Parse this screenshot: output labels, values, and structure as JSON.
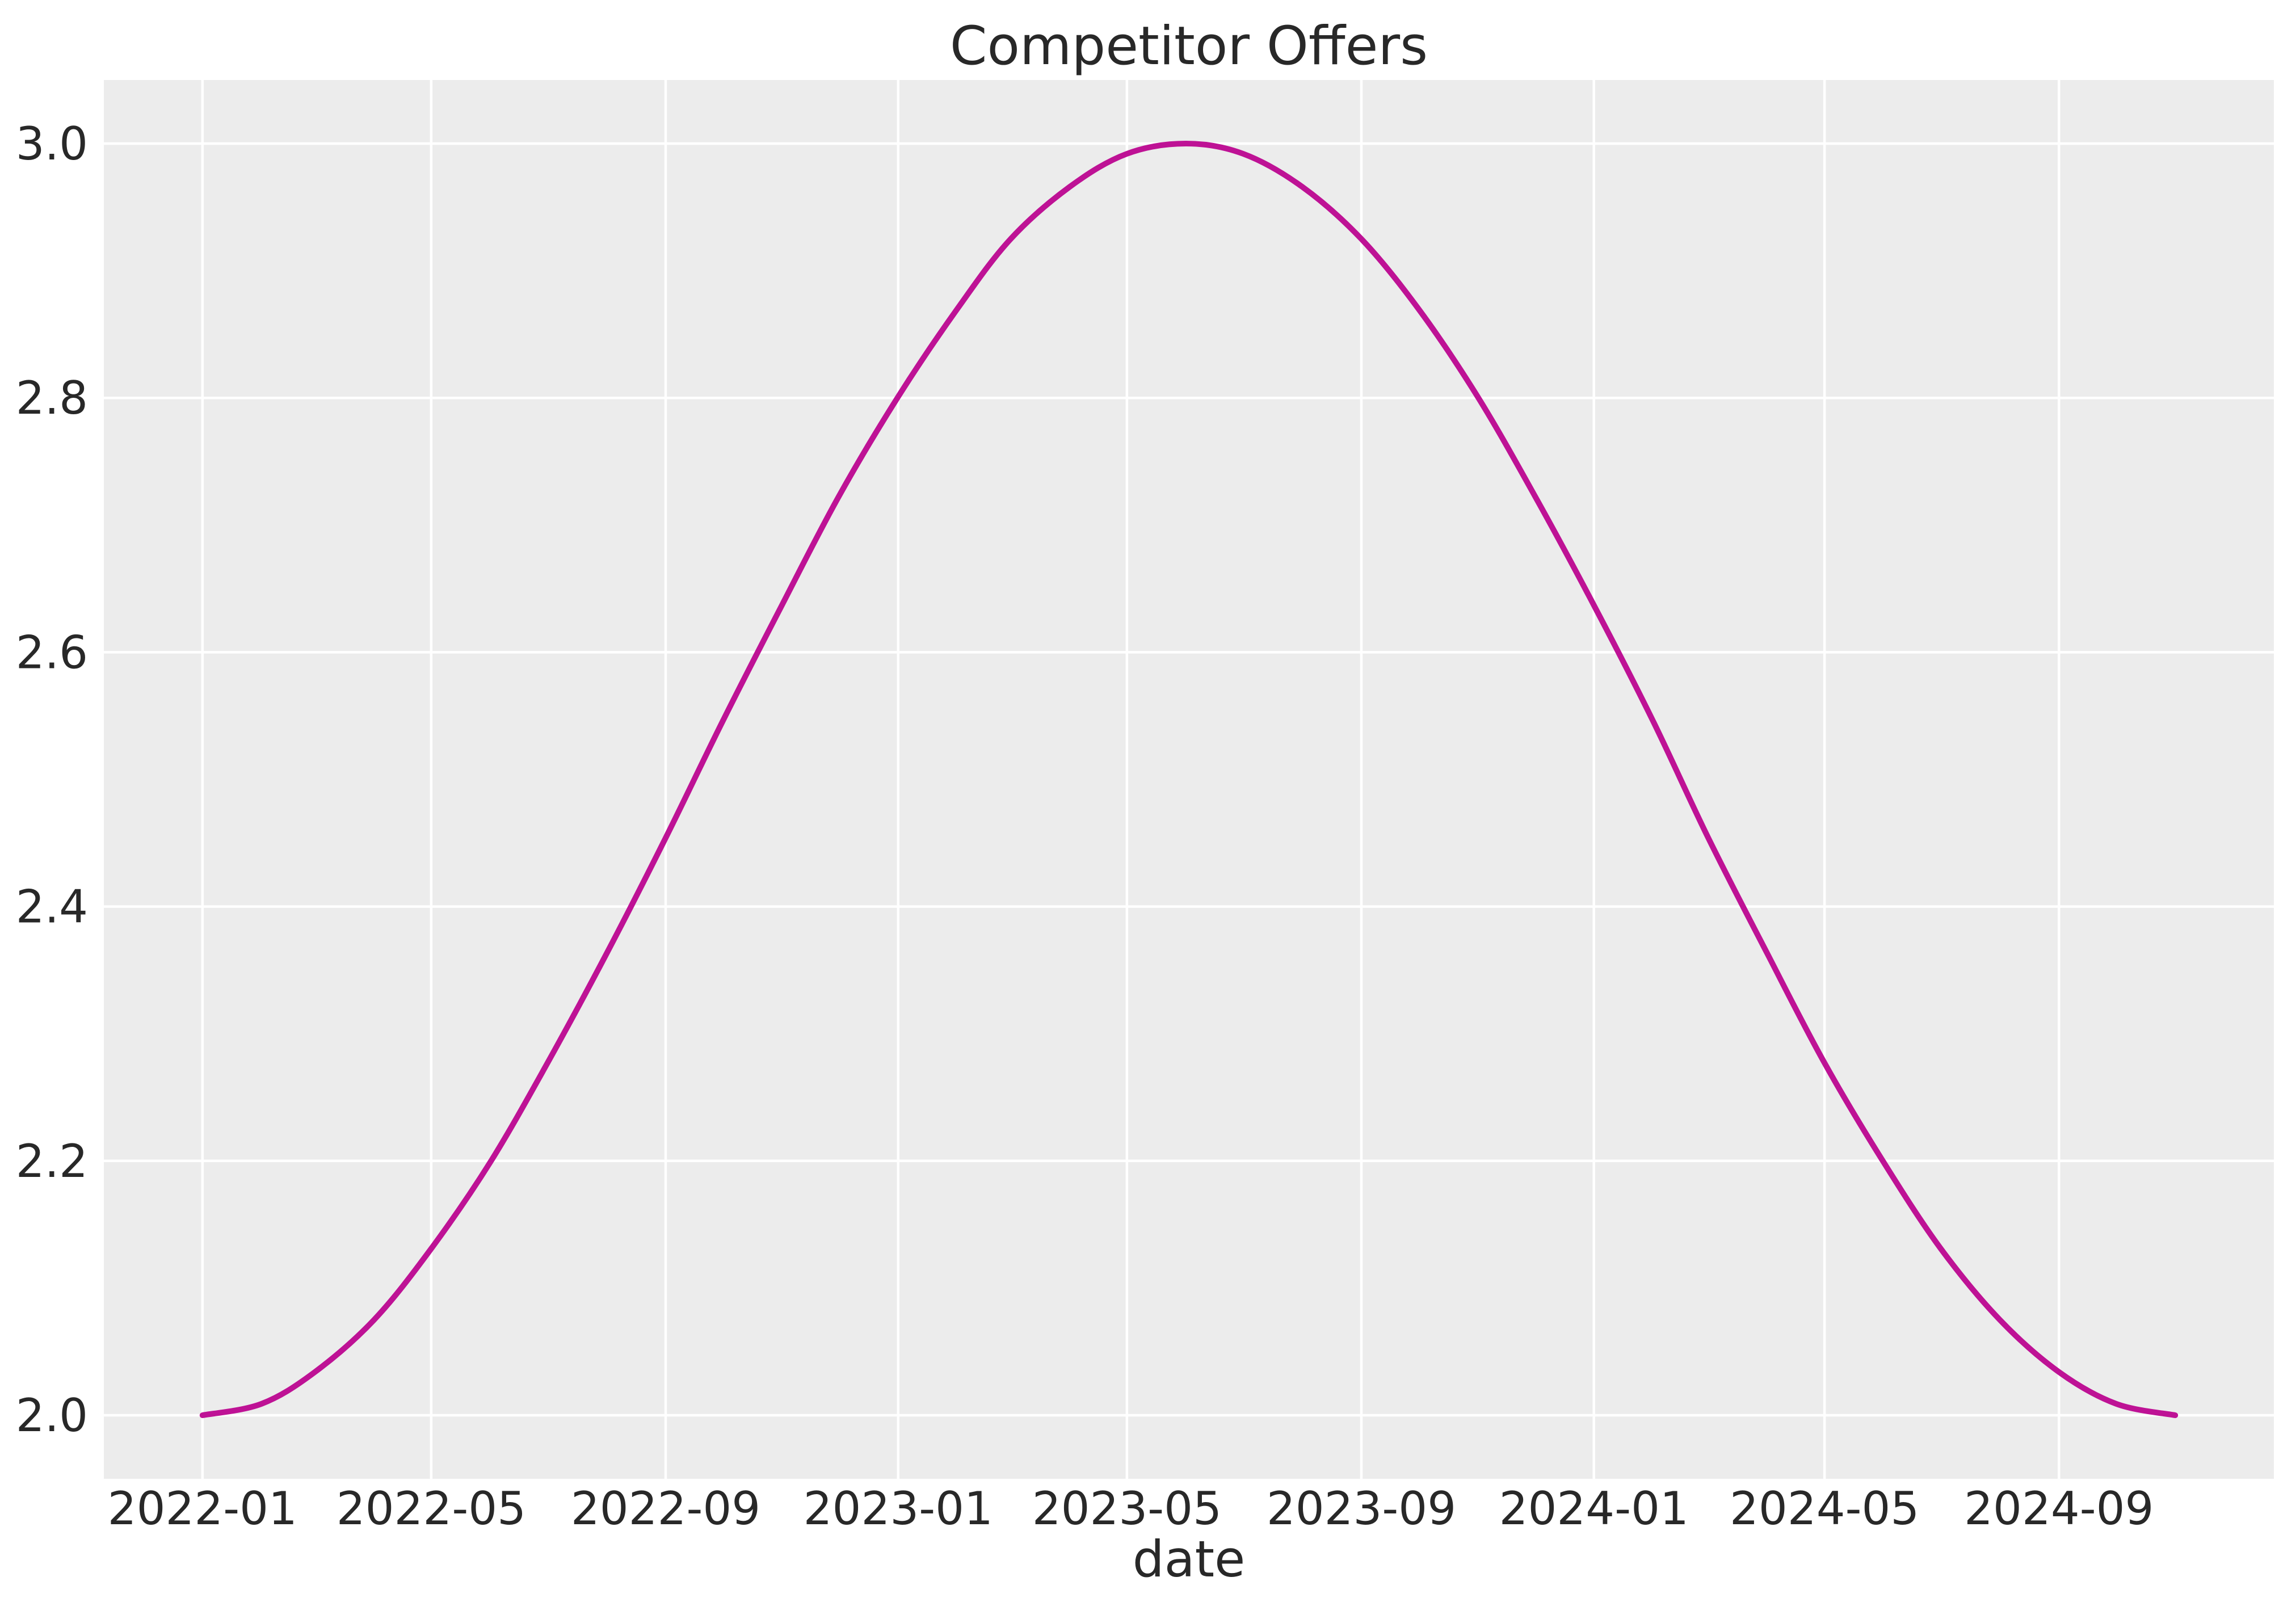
{
  "chart_data": {
    "type": "line",
    "title": "Competitor Offers",
    "xlabel": "date",
    "ylabel": "",
    "series": [
      {
        "name": "Competitor Offers",
        "color": "#be1295",
        "x": [
          "2022-01",
          "2022-02",
          "2022-03",
          "2022-04",
          "2022-05",
          "2022-06",
          "2022-07",
          "2022-08",
          "2022-09",
          "2022-10",
          "2022-11",
          "2022-12",
          "2023-01",
          "2023-02",
          "2023-03",
          "2023-04",
          "2023-05",
          "2023-06",
          "2023-07",
          "2023-08",
          "2023-09",
          "2023-10",
          "2023-11",
          "2023-12",
          "2024-01",
          "2024-02",
          "2024-03",
          "2024-04",
          "2024-05",
          "2024-06",
          "2024-07",
          "2024-08",
          "2024-09",
          "2024-10",
          "2024-11"
        ],
        "values": [
          2.0,
          2.009,
          2.034,
          2.075,
          2.131,
          2.199,
          2.277,
          2.363,
          2.454,
          2.546,
          2.637,
          2.723,
          2.801,
          2.87,
          2.925,
          2.966,
          2.992,
          3.0,
          2.992,
          2.966,
          2.925,
          2.87,
          2.801,
          2.723,
          2.637,
          2.546,
          2.454,
          2.363,
          2.277,
          2.199,
          2.131,
          2.075,
          2.034,
          2.009,
          2.0
        ]
      }
    ],
    "x_tick_labels": [
      "2022-01",
      "2022-05",
      "2022-09",
      "2023-01",
      "2023-05",
      "2023-09",
      "2024-01",
      "2024-05",
      "2024-09"
    ],
    "y_ticks": [
      2.0,
      2.2,
      2.4,
      2.6,
      2.8,
      3.0
    ],
    "y_tick_labels": [
      "2.0",
      "2.2",
      "2.4",
      "2.6",
      "2.8",
      "3.0"
    ],
    "ylim": [
      1.95,
      3.05
    ],
    "data_margin": 0.05,
    "grid": true,
    "legend_position": "none",
    "style": {
      "figure_bg": "#ffffff",
      "plot_bg": "#ececec",
      "grid_color": "#ffffff",
      "text_color": "#282828"
    }
  }
}
